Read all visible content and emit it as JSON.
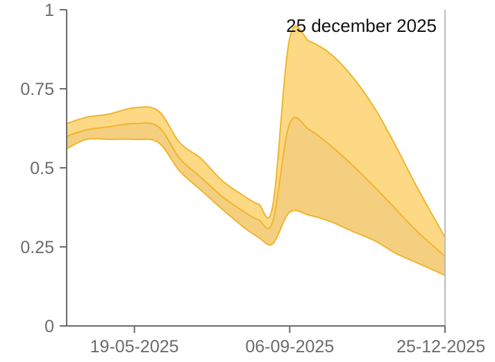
{
  "chart_data": {
    "type": "area",
    "x_ticks": [
      "19-05-2025",
      "06-09-2025",
      "25-12-2025"
    ],
    "y_ticks": [
      "0",
      "0.25",
      "0.5",
      "0.75",
      "1"
    ],
    "ylim": [
      0,
      1
    ],
    "xlim": [
      "2025-04-01",
      "2025-12-25"
    ],
    "annotation": "25 december 2025",
    "grid": false,
    "colors": {
      "upper_fill": "#fdd985",
      "lower_fill": "#f4cf80",
      "line": "#f0b42e",
      "axis": "#6b6b6b",
      "cursor": "#b8bcc0"
    },
    "series": [
      {
        "x": [
          "2025-04-01",
          "2025-04-15",
          "2025-05-01",
          "2025-05-19",
          "2025-06-05",
          "2025-06-20",
          "2025-07-05",
          "2025-07-20",
          "2025-08-05",
          "2025-08-15",
          "2025-08-25",
          "2025-09-06",
          "2025-09-20",
          "2025-10-05",
          "2025-10-20",
          "2025-11-05",
          "2025-11-20",
          "2025-12-05",
          "2025-12-25"
        ],
        "upper": [
          0.64,
          0.66,
          0.67,
          0.69,
          0.68,
          0.58,
          0.53,
          0.46,
          0.41,
          0.385,
          0.38,
          0.91,
          0.9,
          0.86,
          0.79,
          0.69,
          0.57,
          0.44,
          0.28
        ],
        "middle": [
          0.6,
          0.62,
          0.63,
          0.64,
          0.63,
          0.53,
          0.47,
          0.41,
          0.36,
          0.335,
          0.33,
          0.64,
          0.62,
          0.57,
          0.51,
          0.44,
          0.37,
          0.3,
          0.22
        ],
        "lower": [
          0.56,
          0.59,
          0.59,
          0.59,
          0.58,
          0.49,
          0.43,
          0.37,
          0.31,
          0.28,
          0.26,
          0.36,
          0.35,
          0.33,
          0.3,
          0.27,
          0.23,
          0.2,
          0.16
        ]
      }
    ]
  }
}
